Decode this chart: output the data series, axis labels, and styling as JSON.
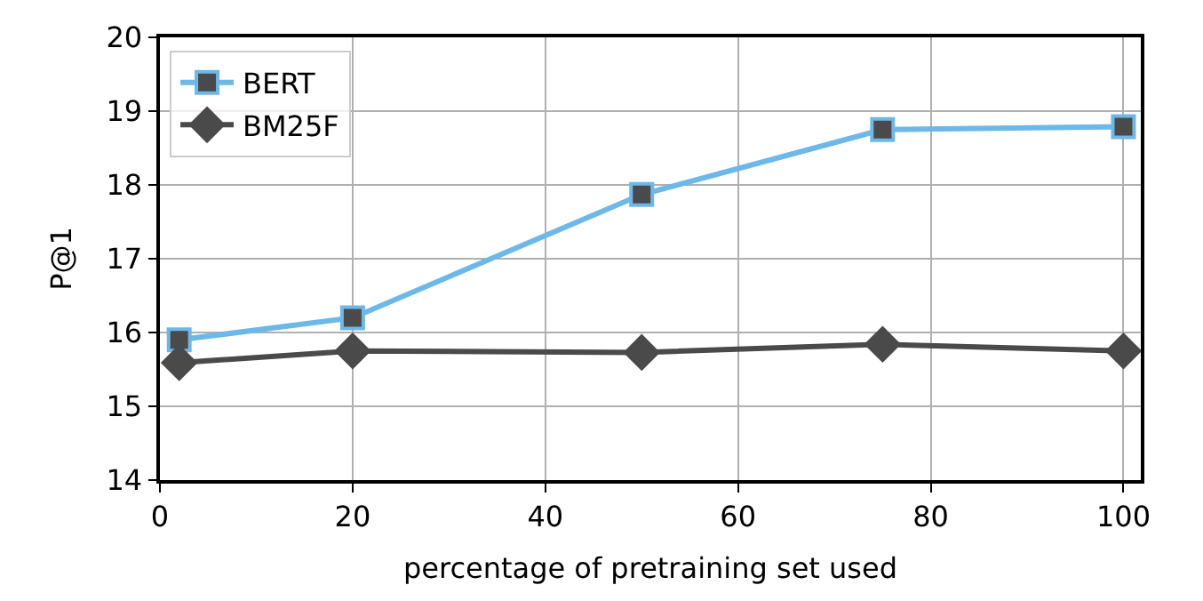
{
  "chart_data": {
    "type": "line",
    "xlabel": "percentage of pretraining set used",
    "ylabel": "P@1",
    "x": [
      2,
      20,
      50,
      75,
      100
    ],
    "series": [
      {
        "name": "BERT",
        "color": "#6cb8e8",
        "marker": "square",
        "values": [
          15.9,
          16.2,
          17.87,
          18.75,
          18.79
        ]
      },
      {
        "name": "BM25F",
        "color": "#4a4a4a",
        "marker": "diamond",
        "values": [
          15.59,
          15.75,
          15.73,
          15.84,
          15.75
        ]
      }
    ],
    "xlim": [
      0,
      101.8
    ],
    "xticks": [
      0,
      20,
      40,
      60,
      80,
      100
    ],
    "ylim": [
      14,
      20
    ],
    "yticks": [
      14,
      15,
      16,
      17,
      18,
      19,
      20
    ],
    "grid": true,
    "legend": "top left",
    "line_style": "solid"
  }
}
